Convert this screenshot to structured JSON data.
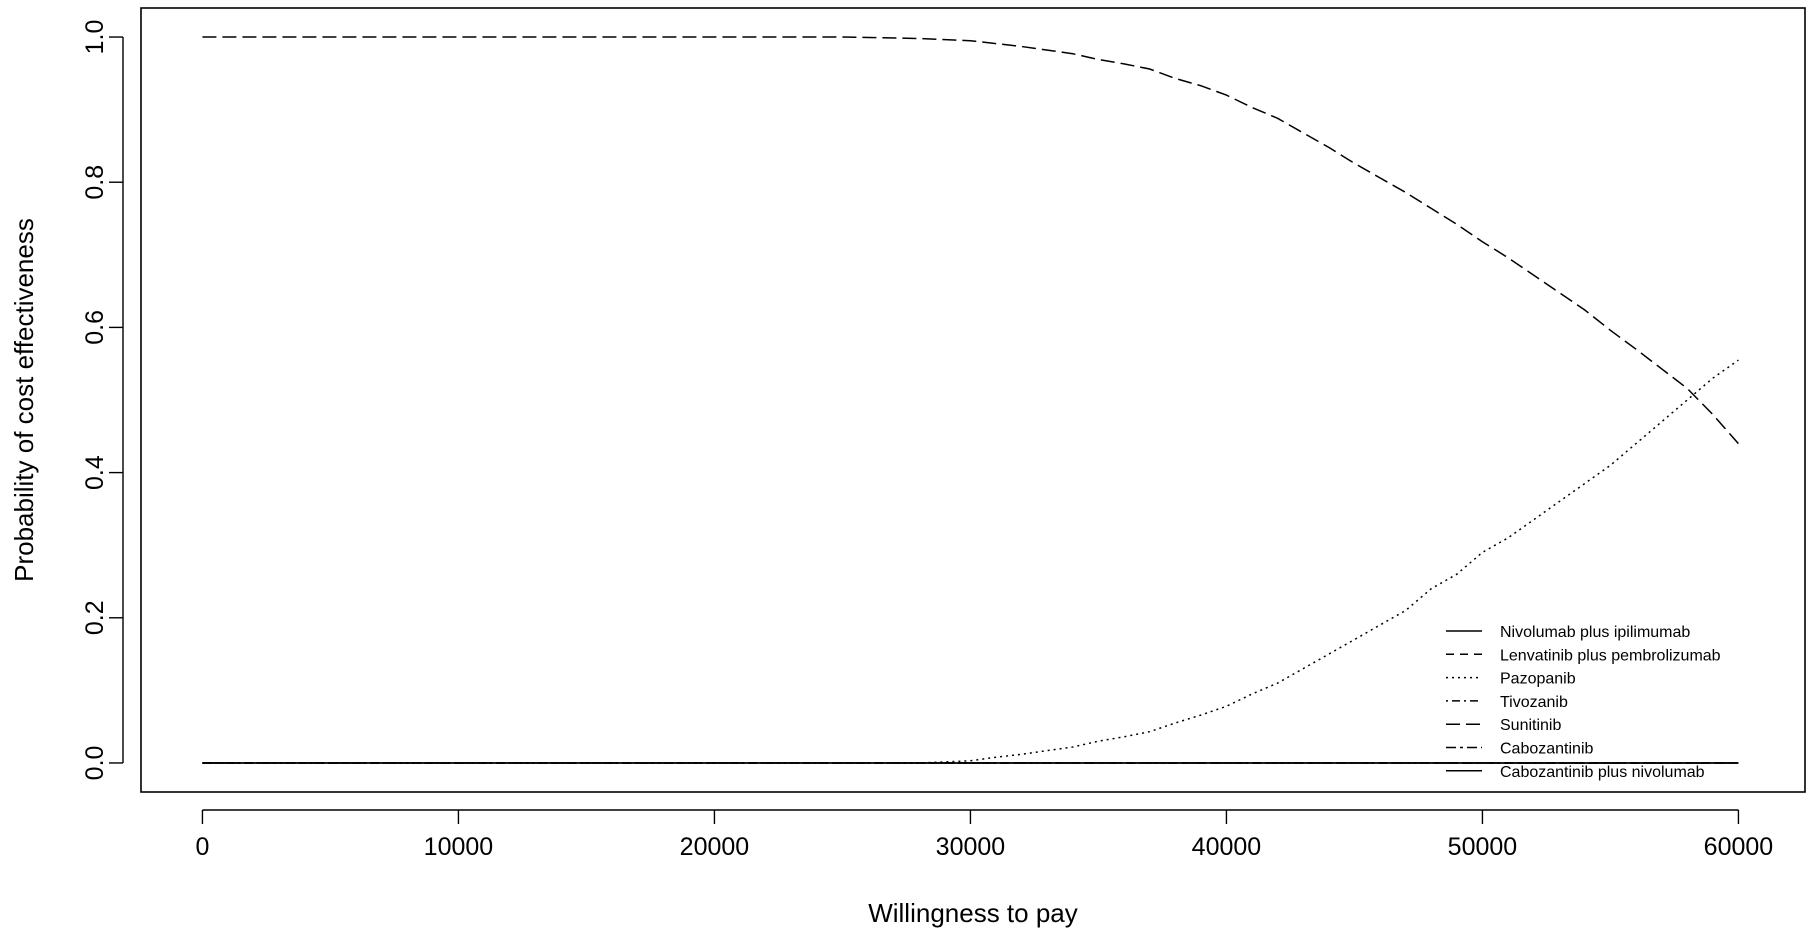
{
  "chart_data": {
    "type": "line",
    "title": "",
    "xlabel": "Willingness to pay",
    "ylabel": "Probability of cost effectiveness",
    "xlim": [
      -2400,
      62600
    ],
    "ylim": [
      -0.04,
      1.04
    ],
    "xticks": [
      0,
      10000,
      20000,
      30000,
      40000,
      50000,
      60000
    ],
    "xtick_labels": [
      "0",
      "10000",
      "20000",
      "30000",
      "40000",
      "50000",
      "60000"
    ],
    "yticks": [
      0,
      0.2,
      0.4,
      0.6,
      0.8,
      1
    ],
    "ytick_labels": [
      "0.0",
      "0.2",
      "0.4",
      "0.6",
      "0.8",
      "1.0"
    ],
    "grid": false,
    "legend_position": "bottom-right",
    "series": [
      {
        "name": "Nivolumab plus ipilimumab",
        "dash": "solid",
        "x": [
          0,
          60000
        ],
        "y": [
          0,
          0
        ]
      },
      {
        "name": "Lenvatinib plus pembrolizumab",
        "dash": "dashed",
        "x": [
          0,
          60000
        ],
        "y": [
          0,
          0
        ]
      },
      {
        "name": "Pazopanib",
        "dash": "dotted",
        "x": [
          0,
          28000,
          30000,
          31000,
          32000,
          33000,
          34000,
          35000,
          36000,
          37000,
          38000,
          39000,
          40000,
          41000,
          42000,
          43000,
          44000,
          45000,
          46000,
          47000,
          48000,
          49000,
          50000,
          51000,
          52000,
          53000,
          54000,
          55000,
          56000,
          57000,
          58000,
          59000,
          60000
        ],
        "y": [
          0,
          0,
          0.003,
          0.008,
          0.012,
          0.017,
          0.022,
          0.03,
          0.036,
          0.043,
          0.055,
          0.066,
          0.078,
          0.095,
          0.11,
          0.13,
          0.15,
          0.17,
          0.19,
          0.21,
          0.24,
          0.26,
          0.29,
          0.31,
          0.335,
          0.36,
          0.385,
          0.41,
          0.44,
          0.47,
          0.5,
          0.53,
          0.555
        ]
      },
      {
        "name": "Tivozanib",
        "dash": "dotdash",
        "x": [
          0,
          60000
        ],
        "y": [
          0,
          0
        ]
      },
      {
        "name": "Sunitinib",
        "dash": "longdash",
        "x": [
          0,
          5000,
          10000,
          15000,
          20000,
          25000,
          28000,
          30000,
          31000,
          32000,
          33000,
          34000,
          35000,
          36000,
          37000,
          38000,
          39000,
          40000,
          41000,
          42000,
          43000,
          44000,
          45000,
          46000,
          47000,
          48000,
          49000,
          50000,
          51000,
          52000,
          53000,
          54000,
          55000,
          56000,
          57000,
          58000,
          59000,
          60000
        ],
        "y": [
          1,
          1,
          1,
          1,
          1,
          1,
          0.998,
          0.995,
          0.991,
          0.987,
          0.982,
          0.977,
          0.969,
          0.963,
          0.956,
          0.943,
          0.933,
          0.92,
          0.903,
          0.888,
          0.868,
          0.848,
          0.826,
          0.806,
          0.786,
          0.764,
          0.742,
          0.718,
          0.696,
          0.672,
          0.648,
          0.624,
          0.596,
          0.57,
          0.543,
          0.516,
          0.48,
          0.44
        ]
      },
      {
        "name": "Cabozantinib",
        "dash": "twodash",
        "x": [
          0,
          60000
        ],
        "y": [
          0,
          0
        ]
      },
      {
        "name": "Cabozantinib plus nivolumab",
        "dash": "solid",
        "x": [
          0,
          60000
        ],
        "y": [
          0,
          0
        ]
      }
    ]
  }
}
